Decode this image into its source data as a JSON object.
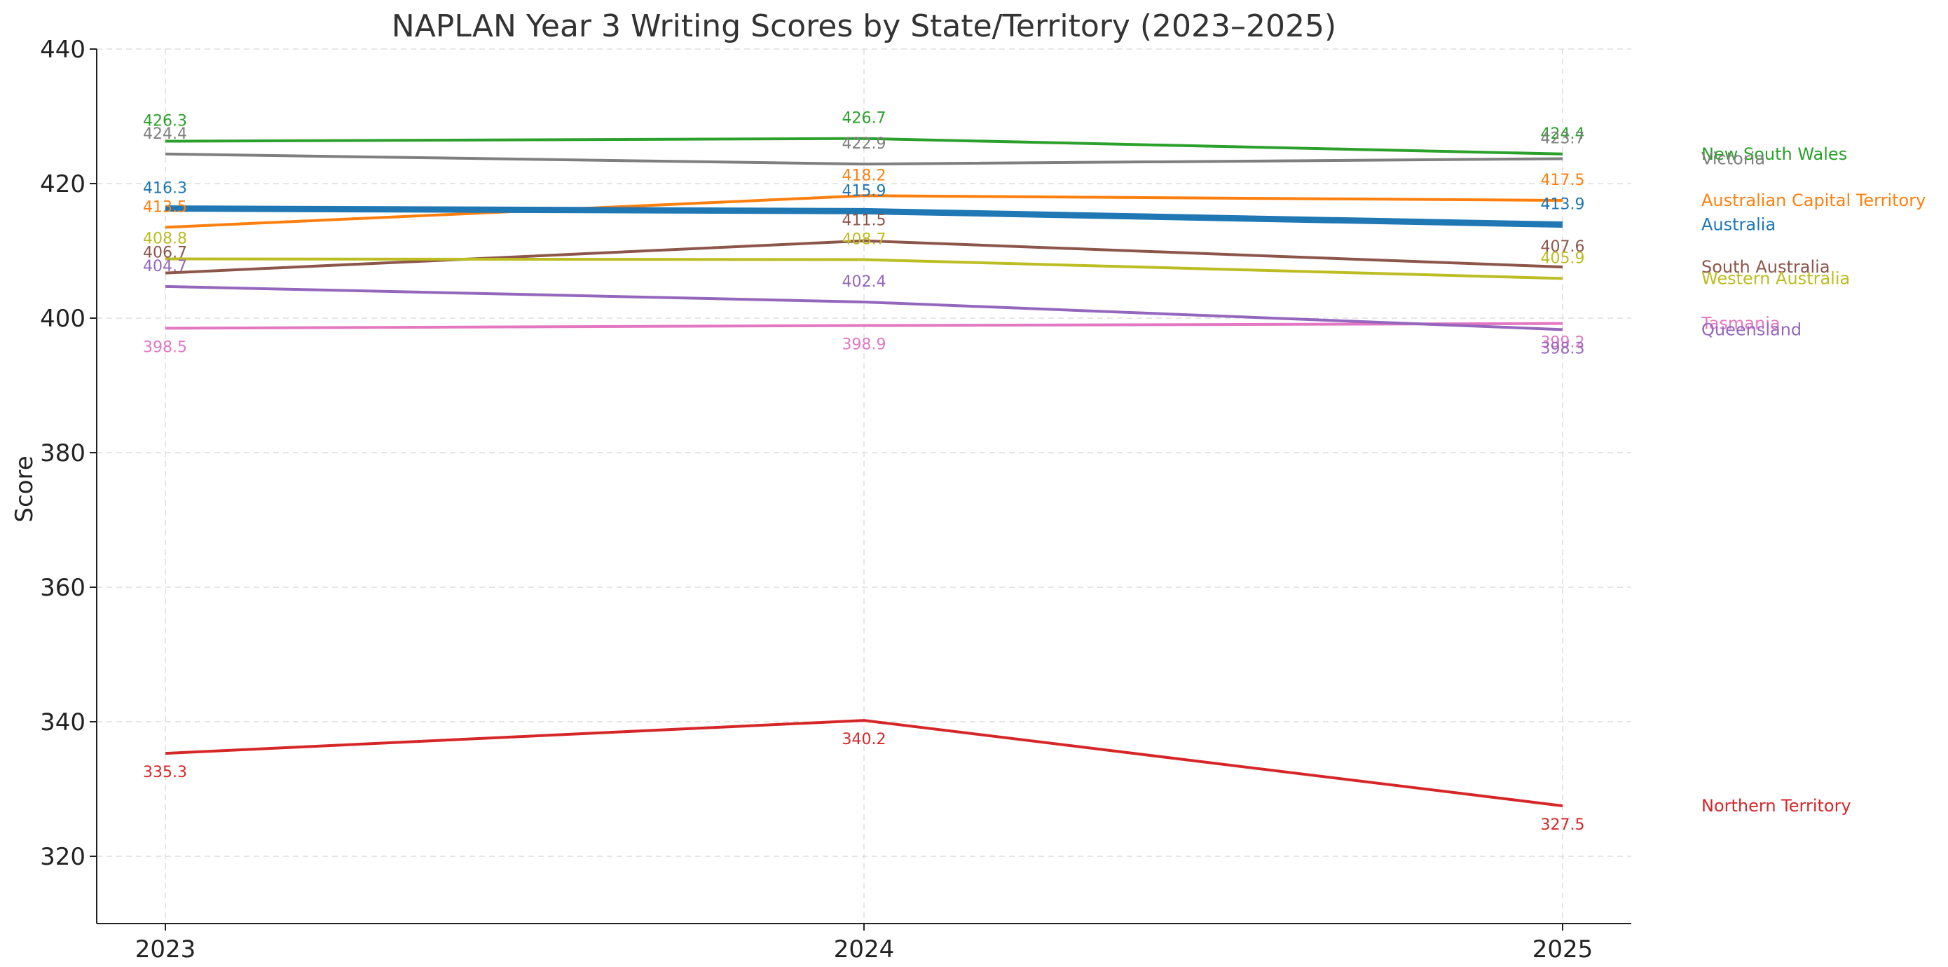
{
  "chart_data": {
    "type": "line",
    "title": "NAPLAN Year 3 Writing Scores by State/Territory (2023–2025)",
    "xlabel": "",
    "ylabel": "Score",
    "x": [
      "2023",
      "2024",
      "2025"
    ],
    "ylim": [
      310,
      440
    ],
    "yticks": [
      320,
      340,
      360,
      380,
      400,
      420,
      440
    ],
    "grid": true,
    "legend_position": "right, labels at line ends",
    "series": [
      {
        "name": "New South Wales",
        "values": [
          426.3,
          426.7,
          424.4
        ],
        "color": "#2ca02c",
        "emphasis": false
      },
      {
        "name": "Victoria",
        "values": [
          424.4,
          422.9,
          423.7
        ],
        "color": "#7f7f7f",
        "emphasis": false
      },
      {
        "name": "Australian Capital Territory",
        "values": [
          413.5,
          418.2,
          417.5
        ],
        "color": "#ff7f0e",
        "emphasis": false
      },
      {
        "name": "Australia",
        "values": [
          416.3,
          415.9,
          413.9
        ],
        "color": "#1f77b4",
        "emphasis": true
      },
      {
        "name": "South Australia",
        "values": [
          406.7,
          411.5,
          407.6
        ],
        "color": "#8c564b",
        "emphasis": false
      },
      {
        "name": "Western Australia",
        "values": [
          408.8,
          408.7,
          405.9
        ],
        "color": "#bcbd22",
        "emphasis": false
      },
      {
        "name": "Tasmania",
        "values": [
          398.5,
          398.9,
          399.2
        ],
        "color": "#e377c2",
        "emphasis": false
      },
      {
        "name": "Queensland",
        "values": [
          404.7,
          402.4,
          398.3
        ],
        "color": "#9467bd",
        "emphasis": false
      },
      {
        "name": "Northern Territory",
        "values": [
          335.3,
          340.2,
          327.5
        ],
        "color": "#d62728",
        "emphasis": false
      }
    ]
  }
}
